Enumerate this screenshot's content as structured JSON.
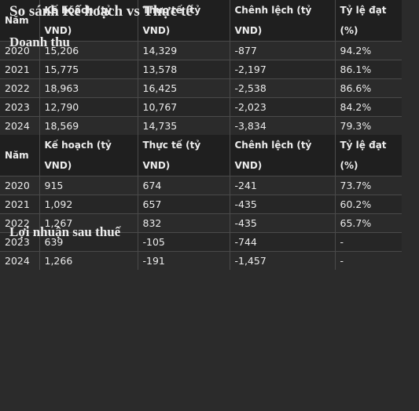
{
  "title": "So sánh Kế hoạch vs Thực tế",
  "sections": [
    {
      "heading": "Doanh thu",
      "table": {
        "header": [
          "Năm",
          "Kế hoạch (tỷ VND)",
          "Thực tế (tỷ VND)",
          "Chênh lệch (tỷ VND)",
          "Tỷ lệ đạt (%)"
        ],
        "rows": [
          [
            "2020",
            "15,206",
            "14,329",
            "-877",
            "94.2%"
          ],
          [
            "2021",
            "15,775",
            "13,578",
            "-2,197",
            "86.1%"
          ],
          [
            "2022",
            "18,963",
            "16,425",
            "-2,538",
            "86.6%"
          ],
          [
            "2023",
            "12,790",
            "10,767",
            "-2,023",
            "84.2%"
          ],
          [
            "2024",
            "18,569",
            "14,735",
            "-3,834",
            "79.3%"
          ]
        ]
      }
    },
    {
      "heading": "Lợi nhuận sau thuế",
      "table": {
        "header": [
          "Năm",
          "Kế hoạch (tỷ VND)",
          "Thực tế (tỷ VND)",
          "Chênh lệch (tỷ VND)",
          "Tỷ lệ đạt (%)"
        ],
        "rows": [
          [
            "2020",
            "915",
            "674",
            "-241",
            "73.7%"
          ],
          [
            "2021",
            "1,092",
            "657",
            "-435",
            "60.2%"
          ],
          [
            "2022",
            "1,267",
            "832",
            "-435",
            "65.7%"
          ],
          [
            "2023",
            "639",
            "-105",
            "-744",
            "-"
          ],
          [
            "2024",
            "1,266",
            "-191",
            "-1,457",
            "-"
          ]
        ]
      }
    }
  ]
}
